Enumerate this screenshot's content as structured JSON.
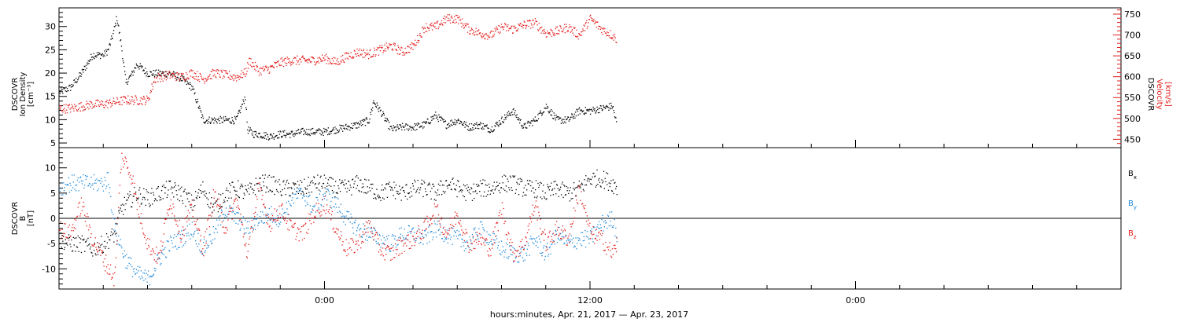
{
  "chart_data": [
    {
      "type": "scatter",
      "panel": "top",
      "ylabel_left": [
        "DSCOVR",
        "Ion Density",
        "[cm⁻³]"
      ],
      "ylabel_right": [
        "DSCOVR",
        "Velocity",
        "[km/s]"
      ],
      "ylim_left": [
        4,
        34
      ],
      "ylim_right": [
        430,
        765
      ],
      "yticks_left": [
        5,
        10,
        15,
        20,
        25,
        30
      ],
      "yticks_right": [
        450,
        500,
        550,
        600,
        650,
        700,
        750
      ],
      "series": [
        {
          "name": "Ion Density",
          "axis": "left",
          "color": "#000000",
          "x": [
            -12,
            -11.5,
            -11,
            -10.5,
            -10,
            -9.8,
            -9.6,
            -9.4,
            -9.2,
            -9,
            -8.7,
            -8.5,
            -8,
            -7.5,
            -7,
            -6.5,
            -6,
            -5.5,
            -5,
            -4.5,
            -4.0,
            -3.6,
            -3.5,
            -3.2,
            -3,
            -2.5,
            -2,
            -1.5,
            -1,
            -0.5,
            0,
            0.5,
            1,
            1.5,
            2,
            2.2,
            2.5,
            3,
            3.5,
            4,
            4.5,
            5,
            5.5,
            6,
            6.5,
            7,
            7.5,
            8,
            8.5,
            9,
            9.5,
            10,
            10.5,
            11,
            11.5,
            12,
            12.5,
            13,
            13.2
          ],
          "values": [
            16,
            17,
            20,
            24,
            24,
            25,
            28,
            32,
            26,
            18,
            20,
            22,
            20,
            20,
            20,
            19,
            17,
            10,
            10,
            10,
            10,
            15,
            8,
            7,
            7,
            6.5,
            7,
            7,
            7.5,
            7.5,
            7.5,
            8,
            8.5,
            9,
            10,
            14,
            12,
            8,
            8.5,
            8.5,
            9,
            11,
            9,
            10,
            8.5,
            9,
            8,
            10,
            12,
            8.5,
            10,
            13,
            10,
            10,
            12,
            12,
            12.5,
            13,
            9
          ]
        },
        {
          "name": "Velocity",
          "axis": "right",
          "color": "#e31b1b",
          "x": [
            -12,
            -11.5,
            -11,
            -10.5,
            -10,
            -9.5,
            -9,
            -8.5,
            -8,
            -7.7,
            -7.5,
            -7,
            -6.5,
            -6,
            -5.5,
            -5,
            -4.5,
            -4,
            -3.6,
            -3.4,
            -3,
            -2.5,
            -2,
            -1.5,
            -1,
            -0.5,
            0,
            0.5,
            1,
            1.5,
            2,
            2.5,
            3,
            3.5,
            4,
            4.3,
            4.5,
            5,
            5.5,
            6,
            6.5,
            7,
            7.5,
            8,
            8.5,
            9,
            9.5,
            10,
            10.5,
            11,
            11.5,
            12,
            12.5,
            13,
            13.2
          ],
          "values": [
            525,
            525,
            530,
            535,
            535,
            540,
            545,
            545,
            545,
            595,
            600,
            605,
            600,
            610,
            595,
            610,
            605,
            600,
            610,
            640,
            615,
            620,
            635,
            640,
            640,
            640,
            645,
            635,
            650,
            660,
            655,
            665,
            675,
            660,
            675,
            700,
            720,
            720,
            740,
            740,
            715,
            705,
            700,
            720,
            715,
            725,
            730,
            705,
            710,
            720,
            700,
            740,
            715,
            700,
            690
          ]
        }
      ]
    },
    {
      "type": "scatter",
      "panel": "bottom",
      "ylabel": [
        "DSCOVR",
        "B",
        "[nT]"
      ],
      "ylim": [
        -14,
        14
      ],
      "yticks": [
        -10,
        -5,
        0,
        5,
        10
      ],
      "reference_line": 0,
      "xlabel": "hours:minutes, Apr. 21, 2017 — Apr. 23, 2017",
      "xticks": [
        "0:00",
        "12:00",
        "0:00"
      ],
      "series": [
        {
          "name": "Bx",
          "color": "#000000",
          "x": [
            -12,
            -11.5,
            -11,
            -10.5,
            -10,
            -9.5,
            -9.2,
            -9,
            -8.5,
            -8,
            -7.5,
            -7,
            -6.5,
            -6,
            -5.5,
            -5,
            -4.5,
            -4,
            -3.5,
            -3,
            -2.5,
            -2,
            -1.5,
            -1,
            -0.5,
            0,
            0.5,
            1,
            1.5,
            2,
            2.5,
            3,
            3.5,
            4,
            4.5,
            5,
            5.5,
            6,
            6.5,
            7,
            7.5,
            8,
            8.5,
            9,
            9.5,
            10,
            10.5,
            11,
            11.5,
            12,
            12.5,
            13,
            13.2
          ],
          "values": [
            -4,
            -5,
            -5,
            -6,
            -5,
            -3,
            2,
            3,
            5,
            4,
            5,
            6,
            5,
            3,
            6,
            2,
            5,
            6,
            5,
            7,
            7,
            6,
            6,
            6,
            7,
            7,
            6,
            6,
            7,
            6,
            5,
            6,
            5,
            6,
            6,
            5,
            7,
            6,
            5,
            6,
            6,
            7,
            7,
            6,
            6,
            5,
            6,
            5,
            6,
            8,
            8,
            7,
            6
          ]
        },
        {
          "name": "By",
          "color": "#1e88d8",
          "x": [
            -12,
            -11.5,
            -11,
            -10.5,
            -10,
            -9.8,
            -9.5,
            -9,
            -8.5,
            -8,
            -7.5,
            -7,
            -6.5,
            -6,
            -5.5,
            -5,
            -4.5,
            -4,
            -3.5,
            -3,
            -2.5,
            -2,
            -1.5,
            -1,
            -0.5,
            0,
            0.5,
            1,
            1.5,
            2,
            2.5,
            3,
            3.5,
            4,
            4.5,
            5,
            5.5,
            6,
            6.5,
            7,
            7.5,
            8,
            8.5,
            9,
            9.5,
            10,
            10.5,
            11,
            11.5,
            12,
            12.5,
            13,
            13.2
          ],
          "values": [
            6,
            7,
            7,
            7,
            7,
            8,
            -2,
            -8,
            -11,
            -12,
            -8,
            -5,
            -4,
            -2,
            -6,
            -3,
            2,
            0,
            -2,
            0,
            1,
            0,
            4,
            5,
            2,
            5,
            3,
            0,
            -2,
            -3,
            -4,
            -5,
            -3,
            -3,
            -4,
            -2,
            -3,
            -4,
            -5,
            -2,
            -4,
            -6,
            -7,
            -7,
            -4,
            -7,
            -3,
            -5,
            -4,
            -4,
            -1,
            0,
            -3
          ]
        },
        {
          "name": "Bz",
          "color": "#e31b1b",
          "x": [
            -12,
            -11.5,
            -11,
            -10.5,
            -10,
            -9.5,
            -9.2,
            -9,
            -8.7,
            -8.5,
            -8,
            -7.5,
            -7,
            -6.5,
            -6,
            -5.5,
            -5,
            -4.5,
            -4,
            -3.5,
            -3,
            -2.5,
            -2,
            -1.5,
            -1,
            -0.5,
            0,
            0.5,
            1,
            1.5,
            2,
            2.5,
            3,
            3.5,
            4,
            4.5,
            5,
            5.5,
            6,
            6.5,
            7,
            7.5,
            8,
            8.5,
            9,
            9.5,
            10,
            10.5,
            11,
            11.5,
            12,
            12.5,
            13,
            13.2
          ],
          "values": [
            -2,
            -3,
            3,
            -4,
            -8,
            -12,
            12,
            11,
            8,
            3,
            -5,
            -8,
            4,
            -3,
            2,
            -6,
            5,
            -2,
            4,
            -7,
            6,
            -1,
            2,
            -2,
            -3,
            1,
            3,
            -2,
            -6,
            -5,
            -1,
            -6,
            -7,
            -5,
            -4,
            -2,
            2,
            -3,
            1,
            -5,
            -4,
            -6,
            2,
            -7,
            -5,
            3,
            -5,
            -2,
            -4,
            6,
            -3,
            -4,
            -7,
            -5
          ]
        }
      ],
      "legend": [
        "Bx",
        "By",
        "Bz"
      ],
      "legend_placement": "right"
    }
  ]
}
